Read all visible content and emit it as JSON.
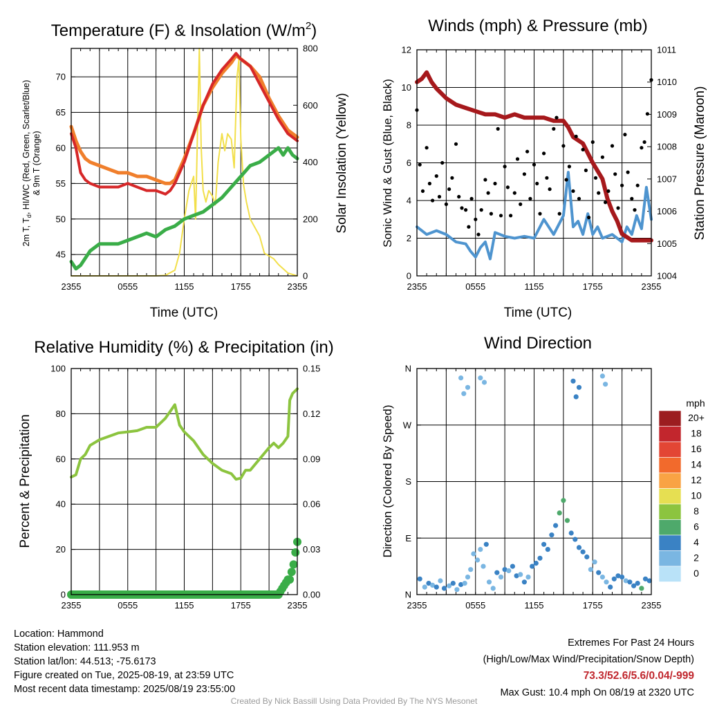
{
  "charts": {
    "temp": {
      "title": "Temperature (F) & Insolation (W/m",
      "title_sup": "2",
      "title_close": ")",
      "ylabel_line1": "2m T, T",
      "ylabel_sub": "d",
      "ylabel_line1_rest": ", HI/WC (Red, Green, Scarlet/Blue)",
      "ylabel_line2": "& 9m T (Orange)",
      "ylabel_right": "Solar Insolation (Yellow)",
      "xlabel": "Time (UTC)"
    },
    "wind": {
      "title": "Winds (mph) & Pressure (mb)",
      "ylabel_left": "Sonic Wind & Gust (Blue, Black)",
      "ylabel_right": "Station Pressure (Maroon)",
      "xlabel": "Time (UTC)"
    },
    "rh": {
      "title": "Relative Humidity (%) & Precipitation (in)",
      "ylabel_left": "Percent & Precipitation"
    },
    "dir": {
      "title": "Wind Direction",
      "ylabel_left": "Direction (Colored By Speed)",
      "legend_title": "mph"
    }
  },
  "chart_data": [
    {
      "type": "line",
      "x_ticks": [
        "2355",
        "0555",
        "1155",
        "1755",
        "2355"
      ],
      "ylim": [
        42,
        74
      ],
      "y_ticks": [
        45,
        50,
        55,
        60,
        65,
        70
      ],
      "y2lim": [
        0,
        800
      ],
      "y2_ticks": [
        0,
        200,
        400,
        600,
        800
      ],
      "series": [
        {
          "color": "#d62728",
          "axis": "left",
          "t": [
            0,
            0.5,
            1,
            1.5,
            2,
            3,
            4,
            5,
            6,
            7,
            8,
            9,
            10,
            10.5,
            11,
            12,
            13,
            14,
            15,
            16,
            17,
            17.5,
            18,
            19,
            20,
            21,
            22,
            23,
            24
          ],
          "values": [
            62,
            60,
            56.5,
            55.5,
            55,
            54.5,
            54.5,
            54.5,
            55,
            54.5,
            54,
            54,
            53.5,
            54,
            55,
            58,
            62,
            66,
            69,
            71,
            72.5,
            73.3,
            72.5,
            71.5,
            69,
            66.5,
            64,
            62,
            61
          ]
        },
        {
          "color": "#f07f2c",
          "axis": "left",
          "t": [
            0,
            0.5,
            1,
            1.5,
            2,
            3,
            4,
            5,
            6,
            7,
            8,
            9,
            10,
            10.5,
            11,
            12,
            13,
            14,
            15,
            16,
            17,
            17.5,
            18,
            19,
            20,
            21,
            22,
            23,
            24
          ],
          "values": [
            63,
            61,
            59.5,
            58.5,
            58,
            57.5,
            57,
            56.5,
            56.5,
            56,
            56,
            55.5,
            55,
            55,
            55.5,
            58.5,
            62,
            66,
            68.5,
            70.5,
            72,
            73,
            72.5,
            71.5,
            70,
            67,
            64.5,
            62.5,
            61.5
          ]
        },
        {
          "color": "#3aad48",
          "axis": "left",
          "t": [
            0,
            0.5,
            1,
            2,
            3,
            4,
            5,
            6,
            7,
            8,
            9,
            10,
            11,
            12,
            13,
            14,
            15,
            16,
            17,
            18,
            19,
            20,
            21,
            22,
            22.5,
            23,
            23.5,
            24
          ],
          "values": [
            44,
            43,
            43.5,
            45.5,
            46.5,
            46.5,
            46.5,
            47,
            47.5,
            48,
            47.5,
            48.5,
            49,
            50,
            50.5,
            51,
            52,
            53,
            54.5,
            56,
            57.5,
            58,
            59,
            60,
            59,
            60,
            59,
            58.5
          ]
        },
        {
          "color": "#f2df4a",
          "axis": "right",
          "t": [
            0,
            9,
            10,
            11,
            11.5,
            12,
            12.5,
            13,
            13.2,
            13.4,
            13.6,
            13.8,
            14,
            14.3,
            14.6,
            15,
            15.3,
            15.6,
            16,
            16.3,
            16.6,
            17,
            17.3,
            17.6,
            17.8,
            18,
            18.3,
            18.6,
            19,
            19.5,
            20,
            20.5,
            21,
            21.5,
            22,
            23,
            24
          ],
          "values": [
            0,
            0,
            2,
            20,
            80,
            200,
            300,
            350,
            200,
            500,
            800,
            450,
            300,
            260,
            300,
            280,
            250,
            400,
            500,
            440,
            500,
            480,
            380,
            700,
            760,
            480,
            320,
            260,
            200,
            170,
            140,
            80,
            70,
            60,
            40,
            10,
            0
          ]
        }
      ]
    },
    {
      "type": "line",
      "x_ticks": [
        "2355",
        "0555",
        "1155",
        "1755",
        "2355"
      ],
      "ylim": [
        0,
        12
      ],
      "y_ticks": [
        0,
        2,
        4,
        6,
        8,
        10,
        12
      ],
      "y2lim": [
        1004,
        1011
      ],
      "y2_ticks": [
        1004,
        1005,
        1006,
        1007,
        1008,
        1009,
        1010,
        1011
      ],
      "series": [
        {
          "color": "#a6191c",
          "axis": "right",
          "t": [
            0,
            0.5,
            1,
            1.5,
            2,
            3,
            4,
            5,
            6,
            7,
            8,
            9,
            10,
            11,
            12,
            13,
            14,
            15,
            15.5,
            16,
            17,
            17.5,
            18,
            19,
            19.5,
            20,
            20.5,
            21,
            22,
            23,
            24
          ],
          "values": [
            1010,
            1010.1,
            1010.3,
            1010,
            1009.8,
            1009.5,
            1009.3,
            1009.2,
            1009.1,
            1009,
            1009,
            1008.9,
            1009,
            1008.9,
            1008.9,
            1008.9,
            1008.8,
            1008.8,
            1008.6,
            1008.3,
            1008.1,
            1007.8,
            1007.5,
            1007,
            1006.4,
            1006,
            1005.7,
            1005.3,
            1005.1,
            1005.1,
            1005.1
          ]
        },
        {
          "color": "#4e94cf",
          "axis": "left",
          "t": [
            0,
            1,
            2,
            3,
            4,
            5,
            5.5,
            6,
            6.5,
            7,
            7.5,
            8,
            9,
            10,
            11,
            12,
            13,
            14,
            15,
            15.5,
            16,
            16.5,
            17,
            17.5,
            18,
            18.5,
            19,
            20,
            21,
            21.5,
            22,
            22.5,
            23,
            23.5,
            24
          ],
          "values": [
            2.6,
            2.2,
            2.4,
            2.2,
            1.8,
            1.7,
            1.3,
            1,
            1.5,
            1.8,
            0.9,
            2.3,
            2.1,
            2,
            2.1,
            2,
            3,
            2.2,
            3.2,
            5.5,
            2.6,
            2.9,
            2.2,
            3.3,
            2.2,
            2.6,
            2,
            2.2,
            1.8,
            2.6,
            2.2,
            3.2,
            2.5,
            4.7,
            3
          ]
        },
        {
          "color": "#000000",
          "axis": "left",
          "mode": "scatter",
          "t": [
            0,
            0.3,
            0.6,
            1,
            1.3,
            1.6,
            2,
            2.3,
            2.6,
            3,
            3.3,
            3.6,
            4,
            4.3,
            4.6,
            5,
            5.3,
            5.6,
            6,
            6.3,
            6.6,
            7,
            7.3,
            7.6,
            8,
            8.3,
            8.6,
            9,
            9.3,
            9.6,
            10,
            10.3,
            10.6,
            11,
            11.3,
            11.6,
            12,
            12.3,
            12.6,
            13,
            13.3,
            13.6,
            14,
            14.3,
            14.6,
            15,
            15.3,
            15.6,
            16,
            16.3,
            16.6,
            17,
            17.3,
            17.6,
            18,
            18.3,
            18.6,
            19,
            19.3,
            19.6,
            20,
            20.3,
            20.6,
            21,
            21.3,
            21.6,
            22,
            22.3,
            22.6,
            23,
            23.3,
            23.6,
            24
          ],
          "values": [
            8.8,
            5.9,
            4.5,
            6.8,
            4.9,
            4,
            5.3,
            4.2,
            6,
            3.8,
            4.6,
            5.2,
            7,
            4.2,
            3.6,
            3.5,
            2.6,
            4.1,
            3,
            2.2,
            3.5,
            5.1,
            4.4,
            3.3,
            4.9,
            7.8,
            3.2,
            5.8,
            4.7,
            3.2,
            4.4,
            6.2,
            3.8,
            5.4,
            6.6,
            4.1,
            5.9,
            4.9,
            3.3,
            6.5,
            5.2,
            4.6,
            7.8,
            8.4,
            3.3,
            6.9,
            5.1,
            5.8,
            4.5,
            7.4,
            4.1,
            6.7,
            5.6,
            3.1,
            7.1,
            5.2,
            4.4,
            6.3,
            3.9,
            4.5,
            6.9,
            5.4,
            3.6,
            4.8,
            7.5,
            5.5,
            4.1,
            3.5,
            4.8,
            6.8,
            7.1,
            8.6,
            10.4
          ]
        }
      ]
    },
    {
      "type": "line",
      "x_ticks": [
        "2355",
        "0555",
        "1155",
        "1755",
        "2355"
      ],
      "ylim": [
        0,
        100
      ],
      "y_ticks": [
        0,
        20,
        40,
        60,
        80,
        100
      ],
      "y2lim": [
        0,
        0.15
      ],
      "y2_ticks": [
        "0.00",
        "0.03",
        "0.06",
        "0.09",
        "0.12",
        "0.15"
      ],
      "series": [
        {
          "color": "#8cc43f",
          "axis": "left",
          "t": [
            0,
            0.5,
            1,
            1.5,
            2,
            3,
            4,
            5,
            6,
            7,
            8,
            9,
            10,
            10.5,
            11,
            11.5,
            12,
            13,
            14,
            15,
            16,
            17,
            17.5,
            18,
            18.5,
            19,
            20,
            21,
            21.5,
            22,
            22.5,
            23,
            23.2,
            23.5,
            24
          ],
          "values": [
            52,
            53,
            60,
            62,
            66,
            68.5,
            70,
            71.5,
            72,
            72.5,
            74,
            74,
            78,
            81,
            84,
            75,
            72,
            68,
            62,
            58,
            55,
            53.5,
            51,
            51.5,
            55,
            55,
            60,
            65,
            67,
            65,
            67,
            70,
            86,
            89,
            91
          ]
        },
        {
          "color": "#3aad48",
          "axis": "right",
          "mode": "dots",
          "t": [
            0,
            1,
            2,
            3,
            4,
            5,
            6,
            7,
            8,
            9,
            10,
            11,
            12,
            13,
            14,
            15,
            16,
            17,
            18,
            19,
            20,
            21,
            22,
            22.2,
            22.4,
            22.6,
            22.8,
            23,
            23.2,
            23.4,
            23.6,
            23.8,
            24
          ],
          "values": [
            0,
            0,
            0,
            0,
            0,
            0,
            0,
            0,
            0,
            0,
            0,
            0,
            0,
            0,
            0,
            0,
            0,
            0,
            0,
            0,
            0,
            0,
            0,
            0.002,
            0.004,
            0.006,
            0.008,
            0.01,
            0.01,
            0.015,
            0.02,
            0.028,
            0.035
          ]
        }
      ]
    },
    {
      "type": "scatter",
      "x_ticks": [
        "2355",
        "0555",
        "1155",
        "1755",
        "2355"
      ],
      "y_ticks": [
        "N",
        "E",
        "S",
        "W",
        "N"
      ],
      "ylim": [
        0,
        360
      ],
      "legend": [
        "20+",
        "18",
        "16",
        "14",
        "12",
        "10",
        "8",
        "6",
        "4",
        "2",
        "0"
      ],
      "legend_colors": [
        "#9c1d20",
        "#c2262d",
        "#e34634",
        "#f26a2c",
        "#f9a344",
        "#e6df52",
        "#8cc43f",
        "#4ea96b",
        "#3a82c4",
        "#7ab6e2",
        "#b9e2f8"
      ],
      "points_t": [
        0.3,
        0.8,
        1.2,
        1.6,
        2,
        2.4,
        2.8,
        3.3,
        3.7,
        4.1,
        4.5,
        4.9,
        5.2,
        5.5,
        5.8,
        6.2,
        6.5,
        6.8,
        7.1,
        7.4,
        7.8,
        8.2,
        8.6,
        9,
        9.4,
        9.8,
        10.2,
        10.6,
        11,
        11.4,
        11.8,
        12.2,
        12.6,
        13,
        13.4,
        13.8,
        14.2,
        14.6,
        15,
        15.4,
        15.8,
        16.2,
        16.6,
        17,
        17.4,
        17.8,
        18.2,
        18.6,
        19,
        19.4,
        19.8,
        20.2,
        20.6,
        21,
        21.4,
        21.8,
        22.2,
        22.6,
        23,
        23.4,
        23.8,
        4.5,
        4.8,
        5.2,
        6.5,
        6.9,
        16,
        16.3,
        16.6,
        19,
        19.3
      ],
      "points_dir": [
        25,
        12,
        18,
        15,
        12,
        22,
        10,
        14,
        18,
        8,
        16,
        18,
        28,
        40,
        65,
        55,
        72,
        45,
        80,
        20,
        10,
        35,
        28,
        40,
        38,
        45,
        30,
        32,
        20,
        28,
        45,
        50,
        58,
        80,
        72,
        95,
        110,
        130,
        150,
        118,
        98,
        88,
        75,
        68,
        60,
        40,
        52,
        35,
        28,
        20,
        12,
        25,
        30,
        28,
        22,
        20,
        14,
        18,
        10,
        25,
        22,
        345,
        320,
        330,
        345,
        338,
        340,
        315,
        330,
        348,
        335
      ],
      "points_speed": [
        3,
        2,
        3,
        2,
        3,
        2,
        3,
        2,
        3,
        2,
        3,
        2,
        1,
        1,
        2,
        1,
        2,
        1,
        3,
        2,
        1,
        3,
        2,
        3,
        2,
        3,
        4,
        2,
        3,
        2,
        3,
        4,
        3,
        4,
        3,
        4,
        4,
        5,
        6,
        5,
        4,
        3,
        4,
        3,
        3,
        2,
        1,
        3,
        2,
        2,
        3,
        4,
        3,
        4,
        2,
        3,
        4,
        3,
        5,
        4,
        3,
        1,
        1,
        1,
        1,
        1,
        4,
        3,
        3,
        1,
        1
      ]
    }
  ],
  "footer": {
    "location": "Location: Hammond",
    "elevation": "Station elevation: 111.953 m",
    "latlon": "Station lat/lon: 44.513; -75.6173",
    "created": "Figure created on Tue, 2025-08-19, at 23:59 UTC",
    "timestamp": "Most recent data timestamp: 2025/08/19 23:55:00",
    "extremes_title": "Extremes For Past 24 Hours",
    "extremes_sub": "(High/Low/Max Wind/Precipitation/Snow Depth)",
    "extremes_values": "73.3/52.6/5.6/0.04/-999",
    "max_gust": "Max Gust: 10.4 mph On 08/19 at 2320 UTC",
    "credit": "Created By Nick Bassill Using Data Provided By The NYS Mesonet"
  }
}
